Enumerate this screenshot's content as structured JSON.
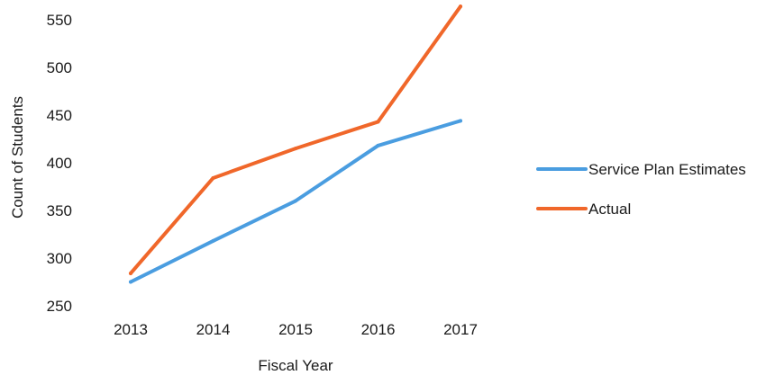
{
  "chart_data": {
    "type": "line",
    "x": [
      "2013",
      "2014",
      "2015",
      "2016",
      "2017"
    ],
    "xlabel": "Fiscal Year",
    "ylabel": "Count of Students",
    "ylim": [
      250,
      550
    ],
    "yticks": [
      250,
      300,
      350,
      400,
      450,
      500,
      550
    ],
    "grid": false,
    "legend_position": "right",
    "series": [
      {
        "name": "Service Plan Estimates",
        "color": "#4a9de0",
        "values": [
          275,
          318,
          360,
          418,
          444
        ]
      },
      {
        "name": "Actual",
        "color": "#f0672a",
        "values": [
          284,
          384,
          415,
          443,
          564
        ]
      }
    ]
  }
}
